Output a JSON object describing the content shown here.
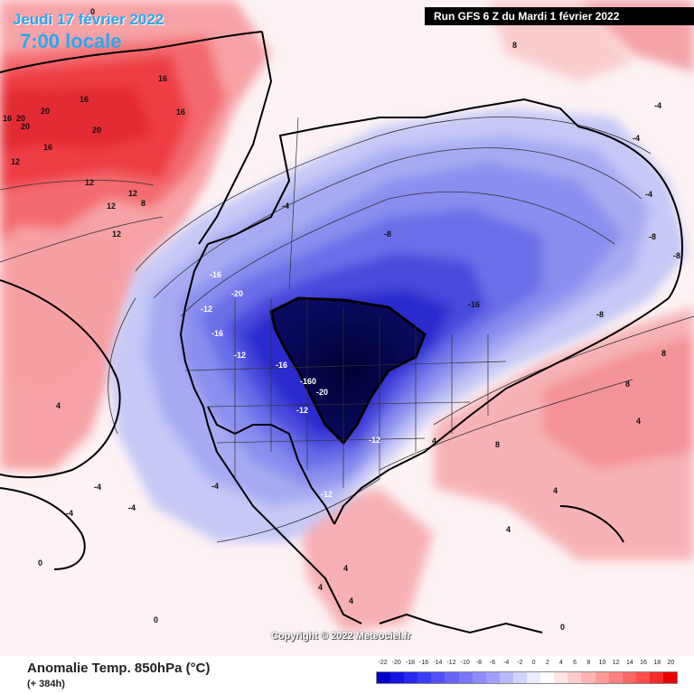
{
  "header": {
    "date": "Jeudi 17 février 2022",
    "time": "7:00 locale"
  },
  "run_info": "Run GFS 6 Z du Mardi 1 février 2022",
  "copyright": "Copyright © 2022 Meteociel.fr",
  "footer": {
    "title": "Anomalie Temp. 850hPa (°C)",
    "forecast_hour": "(+ 384h)"
  },
  "legend": {
    "ticks": [
      "-22",
      "-20",
      "-18",
      "-16",
      "-14",
      "-12",
      "-10",
      "-8",
      "-6",
      "-4",
      "-2",
      "0",
      "2",
      "4",
      "6",
      "8",
      "10",
      "12",
      "14",
      "16",
      "18",
      "20"
    ],
    "colors": [
      "#0000c8",
      "#1414e6",
      "#2828f0",
      "#3c3cf5",
      "#5050f8",
      "#6464fa",
      "#7878fb",
      "#8c8cfc",
      "#a0a0fc",
      "#b9b9fd",
      "#d2d2fe",
      "#ebebff",
      "#ffffff",
      "#ffe6e6",
      "#ffcccc",
      "#ffb3b3",
      "#ff9999",
      "#ff8080",
      "#ff6666",
      "#ff4d4d",
      "#f52a2a",
      "#e60000"
    ]
  },
  "map_labels": {
    "contours": [
      "16",
      "16",
      "16",
      "16",
      "20",
      "20",
      "20",
      "20",
      "16",
      "12",
      "12",
      "12",
      "12",
      "12",
      "8",
      "8",
      "-4",
      "-4",
      "-4",
      "-8",
      "-8",
      "-16",
      "-16",
      "-20",
      "-12",
      "-16",
      "-12",
      "-16",
      "-160",
      "-20",
      "-12",
      "-12",
      "-12",
      "-8",
      "-4",
      "-4",
      "-8",
      "-4",
      "4",
      "4",
      "4",
      "4",
      "4",
      "8",
      "8",
      "8",
      "4",
      "4",
      "4",
      "0",
      "0",
      "0",
      "0",
      "-4",
      "-4"
    ]
  }
}
